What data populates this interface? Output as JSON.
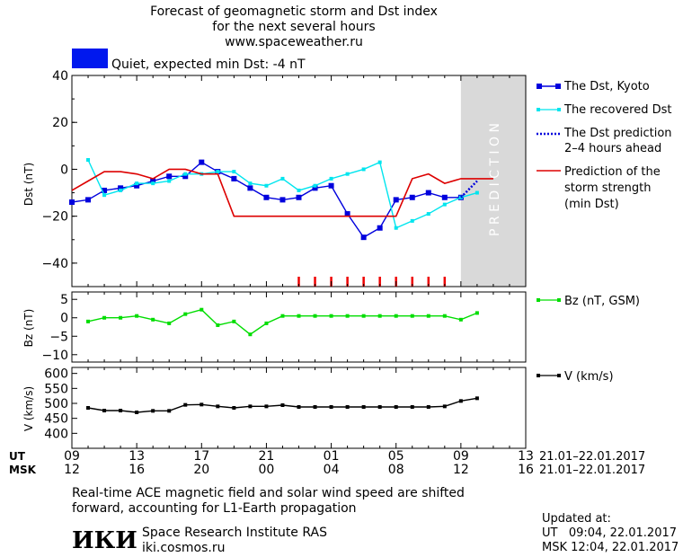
{
  "header": {
    "title_line1": "Forecast of geomagnetic storm and Dst index",
    "title_line2": "for the next several hours",
    "url": "www.spaceweather.ru",
    "status_text": "Quiet, expected min Dst: -4 nT",
    "status_color": "#0018ee"
  },
  "prediction_label": "P R E D I C T I O N",
  "legend": {
    "dst_kyoto": "The Dst, Kyoto",
    "dst_recovered": "The recovered Dst",
    "dst_pred_line1": "The Dst prediction",
    "dst_pred_line2": "2–4 hours ahead",
    "storm_line1": "Prediction of the",
    "storm_line2": "storm strength",
    "storm_line3": "(min Dst)",
    "bz": "Bz (nT, GSM)",
    "v": "V (km/s)"
  },
  "time_axis": {
    "ut_label": "UT",
    "msk_label": "MSK",
    "ut_ticks": [
      "09",
      "13",
      "17",
      "21",
      "01",
      "05",
      "09",
      "13"
    ],
    "msk_ticks": [
      "12",
      "16",
      "20",
      "00",
      "04",
      "08",
      "12",
      "16"
    ],
    "date_range_ut": "21.01–22.01.2017",
    "date_range_msk": "21.01–22.01.2017"
  },
  "footer": {
    "note_line1": "Real-time ACE magnetic field and solar wind speed are shifted",
    "note_line2": "forward, accounting for L1-Earth propagation",
    "logo_text": "ИКИ",
    "institute": "Space Research Institute RAS",
    "site": "iki.cosmos.ru",
    "updated_label": "Updated at:",
    "updated_ut": "UT   09:04, 22.01.2017",
    "updated_msk": "MSK 12:04, 22.01.2017"
  },
  "chart_data": [
    {
      "type": "line",
      "ylabel": "Dst (nT)",
      "xlim": [
        0,
        28
      ],
      "ylim": [
        -50,
        40
      ],
      "yticks": [
        "40",
        "20",
        "0",
        "−20",
        "−40"
      ],
      "prediction_region": [
        24,
        28
      ],
      "series": [
        {
          "name": "The Dst, Kyoto",
          "color": "#0000dd",
          "x": [
            0,
            1,
            2,
            3,
            4,
            5,
            6,
            7,
            8,
            9,
            10,
            11,
            12,
            13,
            14,
            15,
            16,
            17,
            18,
            19,
            20,
            21,
            22,
            23,
            24
          ],
          "y": [
            -14,
            -13,
            -9,
            -8,
            -7,
            -5,
            -3,
            -3,
            3,
            -1,
            -4,
            -8,
            -12,
            -13,
            -12,
            -8,
            -7,
            -19,
            -29,
            -25,
            -13,
            -12,
            -10,
            -12,
            -12
          ]
        },
        {
          "name": "The recovered Dst",
          "color": "#00e5ee",
          "x": [
            1,
            2,
            3,
            4,
            5,
            6,
            7,
            8,
            9,
            10,
            11,
            12,
            13,
            14,
            15,
            16,
            17,
            18,
            19,
            20,
            21,
            22,
            23,
            24,
            25
          ],
          "y": [
            4,
            -11,
            -9,
            -6,
            -6,
            -5,
            -2,
            -2,
            -1,
            -1,
            -6,
            -7,
            -4,
            -9,
            -7,
            -4,
            -2,
            0,
            3,
            -25,
            -22,
            -19,
            -15,
            -12,
            -10
          ]
        },
        {
          "name": "The Dst prediction 2–4 hours ahead",
          "color": "#0000dd",
          "x": [
            24,
            25
          ],
          "y": [
            -12,
            -5
          ]
        },
        {
          "name": "Prediction of the storm strength (min Dst)",
          "color": "#dd0000",
          "x": [
            0,
            1,
            2,
            3,
            4,
            5,
            6,
            7,
            8,
            9,
            10,
            11,
            12,
            13,
            14,
            15,
            16,
            17,
            18,
            19,
            20,
            21,
            22,
            23,
            24,
            25,
            26
          ],
          "y": [
            -9,
            -5,
            -1,
            -1,
            -2,
            -4,
            0,
            0,
            -2,
            -2,
            -20,
            -20,
            -20,
            -20,
            -20,
            -20,
            -20,
            -20,
            -20,
            -20,
            -20,
            -4,
            -2,
            -6,
            -4,
            -4,
            -4
          ]
        }
      ],
      "marker_ticks_x": [
        14,
        15,
        16,
        17,
        18,
        19,
        20,
        21,
        22,
        23
      ]
    },
    {
      "type": "line",
      "ylabel": "Bz (nT)",
      "xlim": [
        0,
        28
      ],
      "ylim": [
        -12,
        7
      ],
      "yticks": [
        "5",
        "0",
        "−5",
        "−10"
      ],
      "series": [
        {
          "name": "Bz (nT, GSM)",
          "color": "#00dd00",
          "x": [
            1,
            2,
            3,
            4,
            5,
            6,
            7,
            8,
            9,
            10,
            11,
            12,
            13,
            14,
            15,
            16,
            17,
            18,
            19,
            20,
            21,
            22,
            23,
            24,
            25
          ],
          "y": [
            -1,
            0,
            0,
            0.5,
            -0.5,
            -1.5,
            1,
            2.2,
            -2,
            -1,
            -4.5,
            -1.5,
            0.5,
            0.5,
            0.5,
            0.5,
            0.5,
            0.5,
            0.5,
            0.5,
            0.5,
            0.5,
            0.5,
            -0.5,
            1.3
          ]
        }
      ]
    },
    {
      "type": "line",
      "ylabel": "V (km/s)",
      "xlim": [
        0,
        28
      ],
      "ylim": [
        350,
        620
      ],
      "yticks": [
        "600",
        "500",
        "400"
      ],
      "yticks_minor": [
        "600",
        "550",
        "500",
        "450",
        "400"
      ],
      "series": [
        {
          "name": "V (km/s)",
          "color": "#000000",
          "x": [
            1,
            2,
            3,
            4,
            5,
            6,
            7,
            8,
            9,
            10,
            11,
            12,
            13,
            14,
            15,
            16,
            17,
            18,
            19,
            20,
            21,
            22,
            23,
            24,
            25
          ],
          "y": [
            485,
            476,
            476,
            470,
            475,
            475,
            495,
            496,
            490,
            485,
            490,
            490,
            494,
            488,
            488,
            488,
            488,
            488,
            488,
            488,
            488,
            488,
            490,
            508,
            517
          ]
        }
      ]
    }
  ]
}
